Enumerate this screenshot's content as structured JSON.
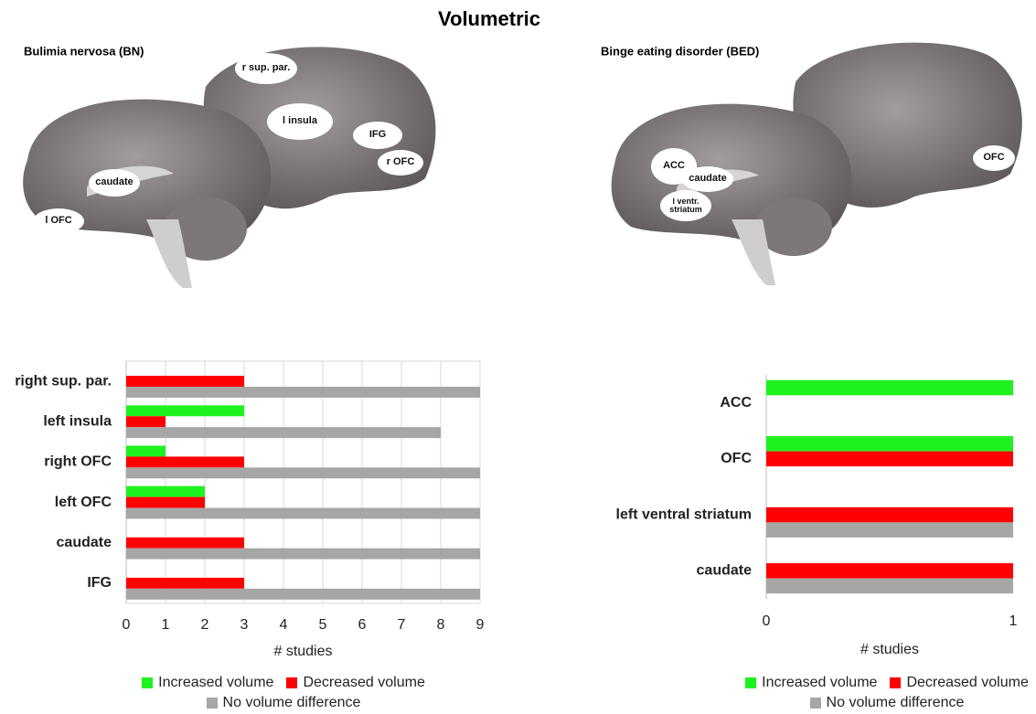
{
  "title": "Volumetric",
  "panels": [
    {
      "title": "Bulimia nervosa (BN)",
      "regions": [
        "r sup. par.",
        "l insula",
        "IFG",
        "r OFC",
        "caudate",
        "l OFC"
      ]
    },
    {
      "title": "Binge eating disorder (BED)",
      "regions": [
        "ACC",
        "caudate",
        "l ventr. striatum",
        "OFC"
      ]
    }
  ],
  "chart_data": [
    {
      "type": "bar",
      "orientation": "horizontal",
      "categories": [
        "right sup. par.",
        "left insula",
        "right OFC",
        "left OFC",
        "caudate",
        "IFG"
      ],
      "series": [
        {
          "name": "Increased volume",
          "color": "#1ef21e",
          "values": [
            0,
            3,
            1,
            2,
            0,
            0
          ]
        },
        {
          "name": "Decreased volume",
          "color": "#ff0000",
          "values": [
            3,
            1,
            3,
            2,
            3,
            3
          ]
        },
        {
          "name": "No volume difference",
          "color": "#a6a6a6",
          "values": [
            9,
            8,
            9,
            9,
            9,
            9
          ]
        }
      ],
      "xlim": [
        0,
        9
      ],
      "xticks": [
        0,
        1,
        2,
        3,
        4,
        5,
        6,
        7,
        8,
        9
      ],
      "xlabel": "# studies",
      "grid": true
    },
    {
      "type": "bar",
      "orientation": "horizontal",
      "categories": [
        "ACC",
        "OFC",
        "left ventral striatum",
        "caudate"
      ],
      "series": [
        {
          "name": "Increased volume",
          "color": "#1ef21e",
          "values": [
            1,
            1,
            0,
            0
          ]
        },
        {
          "name": "Decreased volume",
          "color": "#ff0000",
          "values": [
            0,
            1,
            1,
            1
          ]
        },
        {
          "name": "No volume difference",
          "color": "#a6a6a6",
          "values": [
            0,
            0,
            1,
            1
          ]
        }
      ],
      "xlim": [
        0,
        1
      ],
      "xticks": [
        0,
        1
      ],
      "xlabel": "# studies",
      "grid": false
    }
  ]
}
